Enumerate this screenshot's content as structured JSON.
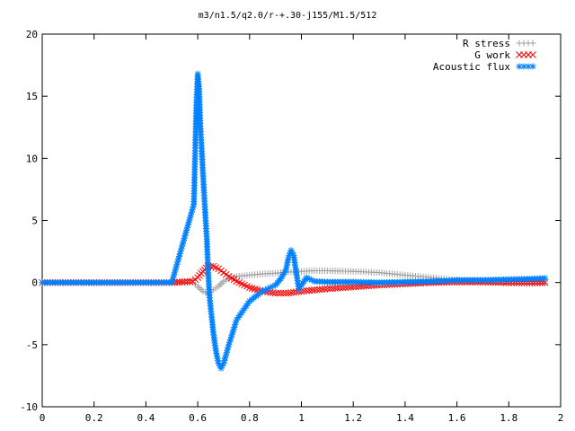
{
  "chart_data": {
    "type": "scatter",
    "title": "m3/n1.5/q2.0/r-+.30-j155/M1.5/512",
    "xlabel": "",
    "ylabel": "",
    "xlim": [
      0,
      2
    ],
    "ylim": [
      -10,
      20
    ],
    "xticks": [
      "0",
      "0.2",
      "0.4",
      "0.6",
      "0.8",
      "1",
      "1.2",
      "1.4",
      "1.6",
      "1.8",
      "2"
    ],
    "yticks": [
      "20",
      "15",
      "10",
      "5",
      "0",
      "-5",
      "-10"
    ],
    "grid": false,
    "legend_position": "top-right",
    "series": [
      {
        "name": "R stress",
        "marker": "plus",
        "color": "#a0a0a0",
        "x": [
          0.0,
          0.1,
          0.2,
          0.3,
          0.4,
          0.5,
          0.58,
          0.6,
          0.62,
          0.64,
          0.66,
          0.68,
          0.7,
          0.72,
          0.75,
          0.8,
          0.85,
          0.9,
          0.95,
          1.0,
          1.05,
          1.1,
          1.2,
          1.3,
          1.4,
          1.5,
          1.6,
          1.7,
          1.8,
          1.9,
          1.94
        ],
        "y": [
          0,
          0,
          0,
          0,
          0,
          0,
          0,
          -0.3,
          -0.7,
          -0.9,
          -0.6,
          -0.3,
          0.1,
          0.3,
          0.5,
          0.6,
          0.7,
          0.75,
          0.85,
          0.9,
          0.95,
          0.95,
          0.9,
          0.8,
          0.6,
          0.4,
          0.2,
          0.05,
          -0.05,
          -0.1,
          -0.05
        ]
      },
      {
        "name": "G work",
        "marker": "cross",
        "color": "#ff0000",
        "x": [
          0.0,
          0.1,
          0.2,
          0.3,
          0.4,
          0.5,
          0.58,
          0.6,
          0.62,
          0.64,
          0.66,
          0.68,
          0.7,
          0.72,
          0.75,
          0.8,
          0.85,
          0.9,
          0.95,
          1.0,
          1.05,
          1.1,
          1.2,
          1.3,
          1.4,
          1.5,
          1.6,
          1.7,
          1.8,
          1.9,
          1.94
        ],
        "y": [
          0,
          0,
          0,
          0,
          0,
          0,
          0.1,
          0.4,
          0.9,
          1.3,
          1.3,
          1.1,
          0.8,
          0.5,
          0.1,
          -0.4,
          -0.7,
          -0.85,
          -0.85,
          -0.7,
          -0.6,
          -0.5,
          -0.35,
          -0.2,
          -0.1,
          0,
          0.05,
          0.05,
          0,
          0,
          0
        ]
      },
      {
        "name": "Acoustic flux",
        "marker": "star",
        "color": "#0080ff",
        "x": [
          0.0,
          0.1,
          0.2,
          0.3,
          0.4,
          0.5,
          0.585,
          0.595,
          0.6,
          0.605,
          0.61,
          0.615,
          0.62,
          0.625,
          0.63,
          0.635,
          0.64,
          0.645,
          0.65,
          0.655,
          0.66,
          0.67,
          0.68,
          0.69,
          0.7,
          0.72,
          0.75,
          0.8,
          0.85,
          0.9,
          0.92,
          0.94,
          0.95,
          0.96,
          0.97,
          0.98,
          0.99,
          1.0,
          1.01,
          1.02,
          1.03,
          1.05,
          1.1,
          1.2,
          1.3,
          1.4,
          1.5,
          1.6,
          1.7,
          1.8,
          1.9,
          1.94
        ],
        "y": [
          0,
          0,
          0,
          0,
          0,
          0,
          6.3,
          14.5,
          16.8,
          15.8,
          12.6,
          10.8,
          8.8,
          7.0,
          5.2,
          3.5,
          1.0,
          -1.0,
          -2.1,
          -3.0,
          -4.0,
          -5.5,
          -6.5,
          -6.9,
          -6.5,
          -5.0,
          -3.0,
          -1.5,
          -0.7,
          -0.2,
          0.3,
          1.0,
          2.0,
          2.6,
          2.2,
          0.8,
          -0.5,
          -0.2,
          0.1,
          0.4,
          0.3,
          0.1,
          0.05,
          0.05,
          0.0,
          0.05,
          0.1,
          0.2,
          0.2,
          0.25,
          0.3,
          0.35
        ]
      }
    ]
  }
}
